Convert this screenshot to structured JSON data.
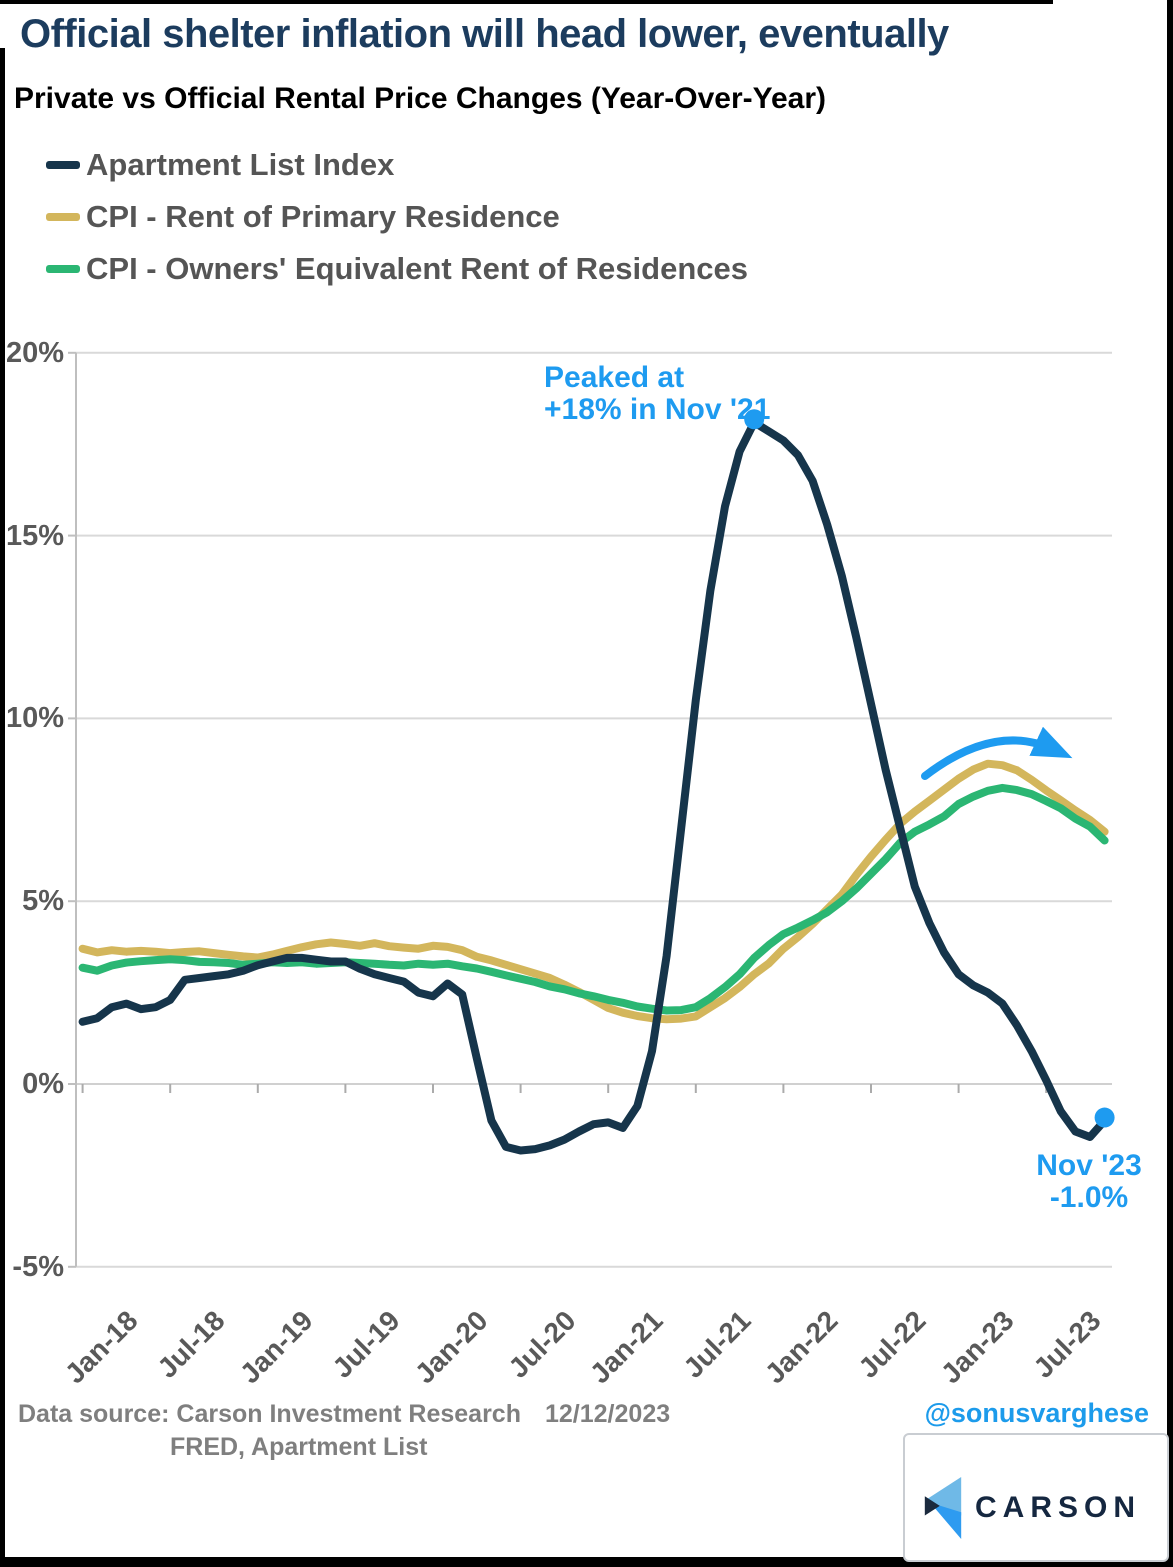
{
  "header": {
    "title": "Official shelter inflation will head lower, eventually",
    "subtitle": "Private vs Official Rental Price Changes (Year-Over-Year)"
  },
  "chart_data": {
    "type": "line",
    "title": "Private vs Official Rental Price Changes (Year-Over-Year)",
    "ylim": [
      -5,
      20
    ],
    "grid": "horizontal",
    "legend_position": "top-left",
    "y_axis": {
      "ticks": [
        {
          "label": "20%",
          "value": 20
        },
        {
          "label": "15%",
          "value": 15
        },
        {
          "label": "10%",
          "value": 10
        },
        {
          "label": "5%",
          "value": 5
        },
        {
          "label": "0%",
          "value": 0
        },
        {
          "label": "-5%",
          "value": -5
        }
      ]
    },
    "x_axis": {
      "ticks": [
        {
          "label": "Jan-18",
          "month_index": 0
        },
        {
          "label": "Jul-18",
          "month_index": 6
        },
        {
          "label": "Jan-19",
          "month_index": 12
        },
        {
          "label": "Jul-19",
          "month_index": 18
        },
        {
          "label": "Jan-20",
          "month_index": 24
        },
        {
          "label": "Jul-20",
          "month_index": 30
        },
        {
          "label": "Jan-21",
          "month_index": 36
        },
        {
          "label": "Jul-21",
          "month_index": 42
        },
        {
          "label": "Jan-22",
          "month_index": 48
        },
        {
          "label": "Jul-22",
          "month_index": 54
        },
        {
          "label": "Jan-23",
          "month_index": 60
        },
        {
          "label": "Jul-23",
          "month_index": 66
        }
      ]
    },
    "categories": [
      "Jan-18",
      "Feb-18",
      "Mar-18",
      "Apr-18",
      "May-18",
      "Jun-18",
      "Jul-18",
      "Aug-18",
      "Sep-18",
      "Oct-18",
      "Nov-18",
      "Dec-18",
      "Jan-19",
      "Feb-19",
      "Mar-19",
      "Apr-19",
      "May-19",
      "Jun-19",
      "Jul-19",
      "Aug-19",
      "Sep-19",
      "Oct-19",
      "Nov-19",
      "Dec-19",
      "Jan-20",
      "Feb-20",
      "Mar-20",
      "Apr-20",
      "May-20",
      "Jun-20",
      "Jul-20",
      "Aug-20",
      "Sep-20",
      "Oct-20",
      "Nov-20",
      "Dec-20",
      "Jan-21",
      "Feb-21",
      "Mar-21",
      "Apr-21",
      "May-21",
      "Jun-21",
      "Jul-21",
      "Aug-21",
      "Sep-21",
      "Oct-21",
      "Nov-21",
      "Dec-21",
      "Jan-22",
      "Feb-22",
      "Mar-22",
      "Apr-22",
      "May-22",
      "Jun-22",
      "Jul-22",
      "Aug-22",
      "Sep-22",
      "Oct-22",
      "Nov-22",
      "Dec-22",
      "Jan-23",
      "Feb-23",
      "Mar-23",
      "Apr-23",
      "May-23",
      "Jun-23",
      "Jul-23",
      "Aug-23",
      "Sep-23",
      "Oct-23",
      "Nov-23"
    ],
    "series": [
      {
        "id": "cpi-rent",
        "name": "CPI - Rent of Primary Residence",
        "color": "#D3B65C",
        "values": [
          3.7,
          3.6,
          3.66,
          3.62,
          3.64,
          3.62,
          3.58,
          3.61,
          3.63,
          3.58,
          3.53,
          3.49,
          3.46,
          3.54,
          3.64,
          3.74,
          3.82,
          3.87,
          3.83,
          3.78,
          3.85,
          3.77,
          3.73,
          3.7,
          3.78,
          3.75,
          3.66,
          3.48,
          3.38,
          3.26,
          3.14,
          3.02,
          2.9,
          2.72,
          2.52,
          2.3,
          2.08,
          1.95,
          1.86,
          1.8,
          1.77,
          1.79,
          1.85,
          2.1,
          2.35,
          2.65,
          3.0,
          3.3,
          3.7,
          4.02,
          4.38,
          4.78,
          5.18,
          5.72,
          6.22,
          6.68,
          7.12,
          7.45,
          7.75,
          8.05,
          8.35,
          8.6,
          8.76,
          8.72,
          8.58,
          8.32,
          8.03,
          7.76,
          7.48,
          7.22,
          6.9
        ]
      },
      {
        "id": "cpi-oer",
        "name": "CPI - Owners' Equivalent Rent of Residences",
        "color": "#2BB673",
        "values": [
          3.18,
          3.1,
          3.24,
          3.32,
          3.36,
          3.39,
          3.41,
          3.39,
          3.34,
          3.33,
          3.31,
          3.26,
          3.29,
          3.33,
          3.31,
          3.33,
          3.29,
          3.31,
          3.33,
          3.31,
          3.29,
          3.26,
          3.24,
          3.29,
          3.26,
          3.29,
          3.22,
          3.16,
          3.07,
          2.97,
          2.88,
          2.79,
          2.67,
          2.59,
          2.48,
          2.4,
          2.3,
          2.22,
          2.12,
          2.06,
          2.01,
          2.02,
          2.1,
          2.35,
          2.65,
          3.0,
          3.45,
          3.8,
          4.1,
          4.28,
          4.48,
          4.7,
          5.0,
          5.35,
          5.75,
          6.15,
          6.6,
          6.9,
          7.1,
          7.32,
          7.66,
          7.86,
          8.02,
          8.1,
          8.04,
          7.93,
          7.74,
          7.54,
          7.26,
          7.04,
          6.66
        ]
      },
      {
        "id": "apartment-list",
        "name": "Apartment List Index",
        "color": "#16354B",
        "values": [
          1.7,
          1.8,
          2.1,
          2.2,
          2.05,
          2.1,
          2.3,
          2.85,
          2.9,
          2.95,
          3.0,
          3.1,
          3.25,
          3.35,
          3.45,
          3.45,
          3.4,
          3.35,
          3.35,
          3.15,
          3.0,
          2.9,
          2.8,
          2.5,
          2.4,
          2.75,
          2.45,
          0.7,
          -1.0,
          -1.72,
          -1.82,
          -1.78,
          -1.68,
          -1.52,
          -1.3,
          -1.1,
          -1.05,
          -1.2,
          -0.6,
          0.9,
          3.5,
          7.0,
          10.5,
          13.5,
          15.8,
          17.3,
          18.1,
          17.85,
          17.6,
          17.2,
          16.5,
          15.3,
          13.9,
          12.2,
          10.4,
          8.6,
          7.0,
          5.4,
          4.4,
          3.6,
          3.0,
          2.7,
          2.5,
          2.2,
          1.6,
          0.9,
          0.1,
          -0.75,
          -1.3,
          -1.45,
          -1.0
        ]
      }
    ],
    "legend_order": [
      "apartment-list",
      "cpi-rent",
      "cpi-oer"
    ],
    "annotations": {
      "marker_color": "#1E9BF0",
      "text_color": "#1E9BF0",
      "peak": {
        "line1": "Peaked at",
        "line2": "+18% in Nov '21",
        "month_index": 46,
        "value": 18.1
      },
      "end": {
        "line1": "Nov '23",
        "line2": "-1.0%",
        "month_index": 70,
        "value": -1.0
      },
      "arrow": {
        "description": "curved arrow over CPI peaks",
        "color": "#1E9BF0"
      }
    }
  },
  "footer": {
    "source_label": "Data source:",
    "source_name": "Carson Investment Research",
    "date": "12/12/2023",
    "source_line2": "FRED, Apartment List",
    "handle": "@sonusvarghese",
    "handle_color": "#1C9BEB",
    "logo_text": "CARSON"
  }
}
